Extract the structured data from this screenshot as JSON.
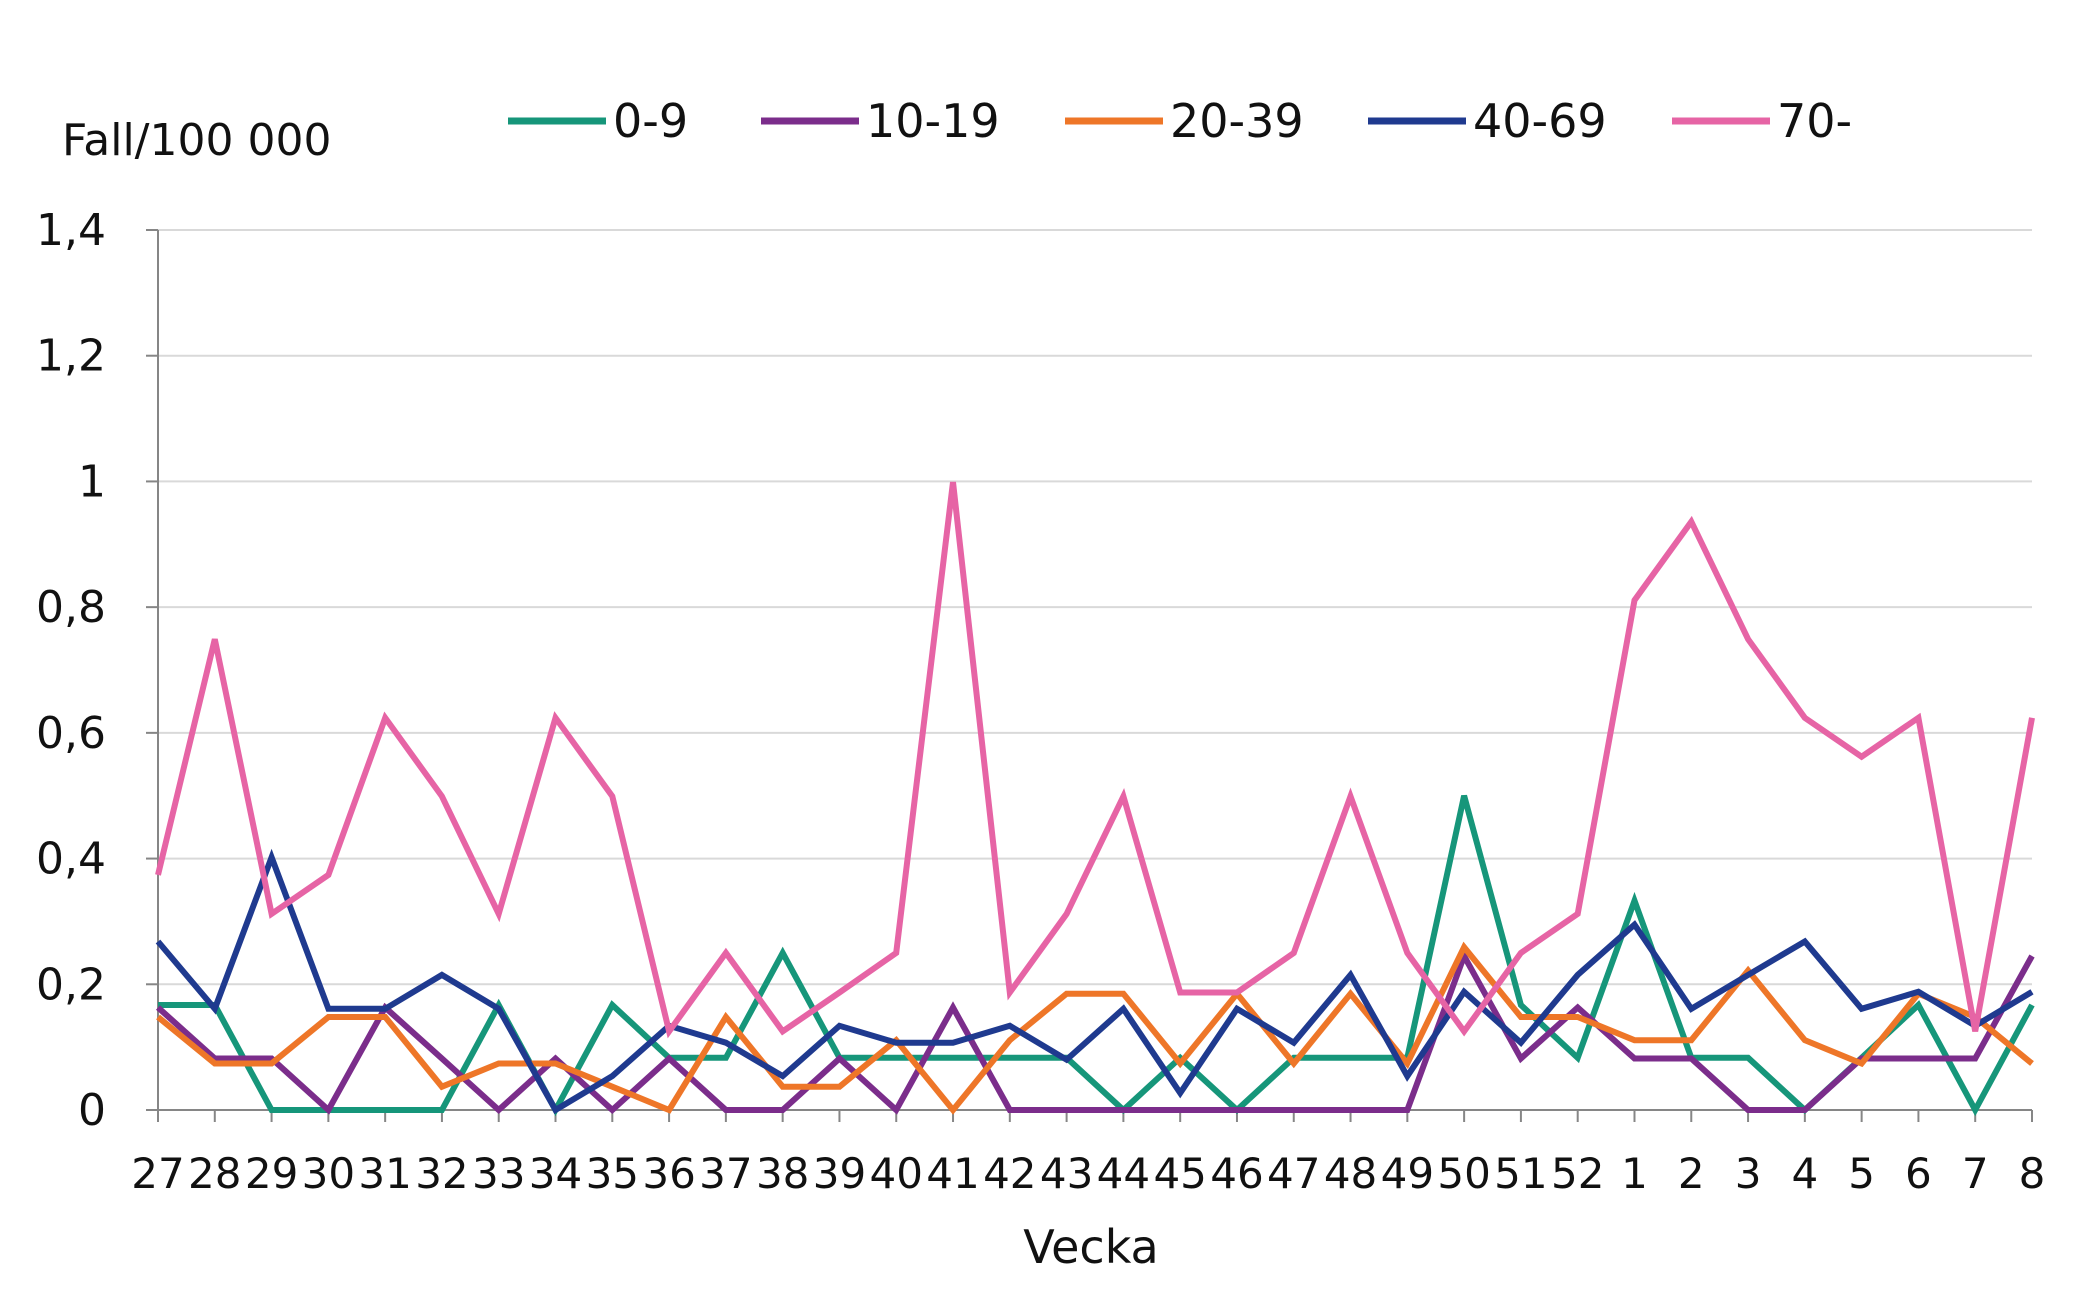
{
  "chart_data": {
    "type": "line",
    "title": "",
    "ylabel": "Fall/100 000",
    "xlabel": "Vecka",
    "ylim": [
      0,
      1.4
    ],
    "yticks": [
      0,
      0.2,
      0.4,
      0.6,
      0.8,
      1.0,
      1.2,
      1.4
    ],
    "ytick_labels": [
      "0",
      "0,2",
      "0,4",
      "0,6",
      "0,8",
      "1",
      "1,2",
      "1,4"
    ],
    "grid": true,
    "legend_position": "top",
    "categories": [
      "27",
      "28",
      "29",
      "30",
      "31",
      "32",
      "33",
      "34",
      "35",
      "36",
      "37",
      "38",
      "39",
      "40",
      "41",
      "42",
      "43",
      "44",
      "45",
      "46",
      "47",
      "48",
      "49",
      "50",
      "51",
      "52",
      "1",
      "2",
      "3",
      "4",
      "5",
      "6",
      "7",
      "8"
    ],
    "series": [
      {
        "name": "0-9",
        "color": "#16967a",
        "values": [
          0.167,
          0.167,
          0.0,
          0.0,
          0.0,
          0.0,
          0.167,
          0.0,
          0.167,
          0.083,
          0.083,
          0.25,
          0.083,
          0.083,
          0.083,
          0.083,
          0.083,
          0.0,
          0.083,
          0.0,
          0.083,
          0.083,
          0.083,
          0.5,
          0.167,
          0.083,
          0.333,
          0.083,
          0.083,
          0.0,
          0.083,
          0.167,
          0.0,
          0.167
        ]
      },
      {
        "name": "10-19",
        "color": "#7b2d8b",
        "values": [
          0.163,
          0.082,
          0.082,
          0.0,
          0.163,
          0.082,
          0.0,
          0.082,
          0.0,
          0.082,
          0.0,
          0.0,
          0.082,
          0.0,
          0.163,
          0.0,
          0.0,
          0.0,
          0.0,
          0.0,
          0.0,
          0.0,
          0.0,
          0.245,
          0.082,
          0.163,
          0.082,
          0.082,
          0.0,
          0.0,
          0.082,
          0.082,
          0.082,
          0.245
        ]
      },
      {
        "name": "20-39",
        "color": "#ee7628",
        "values": [
          0.148,
          0.074,
          0.074,
          0.148,
          0.148,
          0.037,
          0.074,
          0.074,
          0.037,
          0.0,
          0.148,
          0.037,
          0.037,
          0.111,
          0.0,
          0.111,
          0.185,
          0.185,
          0.074,
          0.185,
          0.074,
          0.185,
          0.074,
          0.259,
          0.148,
          0.148,
          0.111,
          0.111,
          0.222,
          0.111,
          0.074,
          0.185,
          0.148,
          0.074
        ]
      },
      {
        "name": "40-69",
        "color": "#1f3a8f",
        "values": [
          0.268,
          0.161,
          0.402,
          0.161,
          0.161,
          0.215,
          0.161,
          0.0,
          0.054,
          0.134,
          0.107,
          0.054,
          0.134,
          0.107,
          0.107,
          0.134,
          0.08,
          0.161,
          0.027,
          0.161,
          0.107,
          0.215,
          0.054,
          0.188,
          0.107,
          0.215,
          0.295,
          0.161,
          0.215,
          0.268,
          0.161,
          0.188,
          0.134,
          0.188
        ]
      },
      {
        "name": "70-",
        "color": "#e664a5",
        "values": [
          0.374,
          0.749,
          0.312,
          0.374,
          0.624,
          0.499,
          0.312,
          0.624,
          0.499,
          0.125,
          0.25,
          0.125,
          0.187,
          0.25,
          0.999,
          0.187,
          0.312,
          0.499,
          0.187,
          0.187,
          0.25,
          0.499,
          0.25,
          0.125,
          0.25,
          0.312,
          0.811,
          0.936,
          0.749,
          0.624,
          0.562,
          0.624,
          0.125,
          0.624
        ]
      }
    ]
  }
}
